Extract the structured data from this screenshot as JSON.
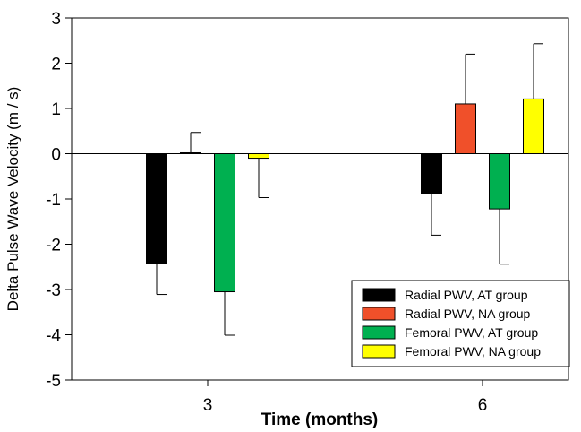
{
  "chart_data": {
    "type": "bar",
    "xlabel": "Time (months)",
    "ylabel": "Delta Pulse Wave Velocity (m / s)",
    "ylim": [
      -5,
      3
    ],
    "yticks": [
      -5,
      -4,
      -3,
      -2,
      -1,
      0,
      1,
      2,
      3
    ],
    "categories": [
      "3",
      "6"
    ],
    "legend_position": "bottom-right",
    "grid": false,
    "series": [
      {
        "name": "Radial PWV, AT group",
        "color": "#000000",
        "values": [
          -2.43,
          -0.88
        ],
        "errors": [
          0.68,
          0.92
        ]
      },
      {
        "name": "Radial PWV, NA group",
        "color": "#f0502a",
        "values": [
          0.02,
          1.1
        ],
        "errors": [
          0.45,
          1.1
        ]
      },
      {
        "name": "Femoral PWV, AT group",
        "color": "#00b050",
        "values": [
          -3.05,
          -1.22
        ],
        "errors": [
          0.96,
          1.22
        ]
      },
      {
        "name": "Femoral PWV, NA group",
        "color": "#ffff00",
        "values": [
          -0.1,
          1.21
        ],
        "errors": [
          0.87,
          1.22
        ]
      }
    ]
  }
}
